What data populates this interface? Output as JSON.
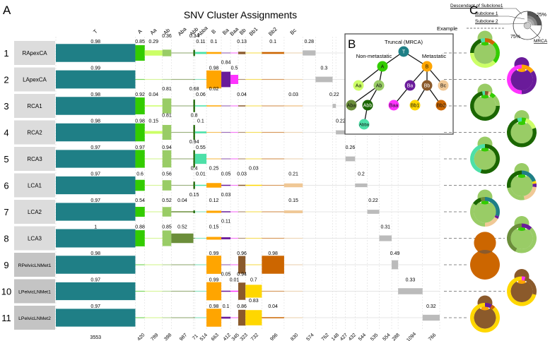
{
  "panels": {
    "a": "A",
    "b": "B",
    "c": "C"
  },
  "chart_data": {
    "type": "table",
    "title": "SNV Cluster Assignments",
    "clusters": [
      {
        "name": "T",
        "count": 3553,
        "color": "#1f7f86"
      },
      {
        "name": "A",
        "count": 420,
        "color": "#33cc00"
      },
      {
        "name": "Aa",
        "count": 789,
        "color": "#ccff66"
      },
      {
        "name": "Ab",
        "count": 398,
        "color": "#99cc66"
      },
      {
        "name": "Aba",
        "count": 987,
        "color": "#6b8e3a"
      },
      {
        "name": "Abb",
        "count": 71,
        "color": "#1a6600"
      },
      {
        "name": "Abba",
        "count": 514,
        "color": "#4de0a8"
      },
      {
        "name": "B",
        "count": 663,
        "color": "#ffa500"
      },
      {
        "name": "Ba",
        "count": 412,
        "color": "#6a1b9a"
      },
      {
        "name": "Baa",
        "count": 345,
        "color": "#ff33ff"
      },
      {
        "name": "Bb",
        "count": 323,
        "color": "#8b5a2b"
      },
      {
        "name": "Bb1",
        "count": 732,
        "color": "#ffd700"
      },
      {
        "name": "Bb2",
        "count": 996,
        "color": "#cc6600"
      },
      {
        "name": "Bc",
        "count": 830,
        "color": "#f0c896"
      }
    ],
    "private_clusters": {
      "color": "#bbbbbb",
      "counts": [
        574,
        762,
        148,
        427,
        432,
        544,
        535,
        554,
        288,
        1094,
        766
      ]
    },
    "samples": [
      {
        "id": "1",
        "name": "RApexCA",
        "values": {
          "T": 0.98,
          "A": 0.85,
          "Aa": 0.29,
          "Ab": 0.36,
          "Abb": 0.34,
          "Abba": 0.11,
          "B": 0.1,
          "Bb": 0.13,
          "Bb2": 0.1
        },
        "private": {
          "index": 0,
          "value": 0.28
        }
      },
      {
        "id": "2",
        "name": "LApexCA",
        "values": {
          "T": 0.99,
          "B": 0.98,
          "Ba": 0.84,
          "Baa": 0.5
        },
        "private": {
          "index": 1,
          "value": 0.3
        }
      },
      {
        "id": "3",
        "name": "RCA1",
        "values": {
          "T": 0.98,
          "A": 0.92,
          "Aa": 0.04,
          "Ab": 0.81,
          "Abb": 0.68,
          "Abba": 0.06,
          "B": 0.02,
          "Bb": 0.04,
          "Bc": 0.03
        },
        "private": {
          "index": 2,
          "value": 0.22
        }
      },
      {
        "id": "4",
        "name": "RCA2",
        "values": {
          "T": 0.98,
          "A": 0.98,
          "Aa": 0.15,
          "Ab": 0.81,
          "Abb": 0.8,
          "Abba": 0.1
        },
        "private": {
          "index": 3,
          "value": 0.22
        }
      },
      {
        "id": "5",
        "name": "RCA3",
        "values": {
          "T": 0.97,
          "A": 0.97,
          "Ab": 0.94,
          "Abb": 0.94,
          "Abba": 0.55
        },
        "private": {
          "index": 4,
          "value": 0.26
        }
      },
      {
        "id": "6",
        "name": "LCA1",
        "values": {
          "T": 0.97,
          "A": 0.6,
          "Ab": 0.56,
          "Abb": 0.4,
          "Abba": 0.01,
          "B": 0.25,
          "Ba": 0.05,
          "Bb": 0.03,
          "Bb1": 0.03,
          "Bc": 0.21
        },
        "private": {
          "index": 5,
          "value": 0.2
        }
      },
      {
        "id": "7",
        "name": "LCA2",
        "values": {
          "T": 0.97,
          "A": 0.54,
          "Ab": 0.52,
          "Aba": 0.04,
          "Abb": 0.15,
          "B": 0.12,
          "Ba": 0.03,
          "Bc": 0.15
        },
        "private": {
          "index": 6,
          "value": 0.22
        }
      },
      {
        "id": "8",
        "name": "LCA3",
        "values": {
          "T": 1,
          "A": 0.88,
          "Ab": 0.85,
          "Aba": 0.52,
          "B": 0.15,
          "Ba": 0.11
        },
        "private": {
          "index": 7,
          "value": 0.31
        }
      },
      {
        "id": "9",
        "name": "RPelvicLNMet1",
        "values": {
          "T": 0.98,
          "B": 0.99,
          "Bb": 0.96,
          "Bb2": 0.98
        },
        "private": {
          "index": 8,
          "value": 0.49
        }
      },
      {
        "id": "10",
        "name": "LPelvicLNMet1",
        "values": {
          "T": 0.97,
          "B": 0.99,
          "Ba": 0.05,
          "Baa": 0.01,
          "Bb": 0.94,
          "Bb1": 0.7
        },
        "private": {
          "index": 9,
          "value": 0.33
        }
      },
      {
        "id": "11",
        "name": "LPelvicLNMet2",
        "values": {
          "T": 0.97,
          "B": 0.98,
          "Ba": 0.1,
          "Bb": 0.86,
          "Bb1": 0.83,
          "Bb2": 0.04
        },
        "private": {
          "index": 10,
          "value": 0.32
        }
      }
    ]
  },
  "tree": {
    "title": "Truncal (MRCA)",
    "left_label": "Non-metastatic",
    "right_label": "Metastatic",
    "nodes": [
      "T",
      "A",
      "B",
      "Aa",
      "Ab",
      "Ba",
      "Bb",
      "Bc",
      "Aba",
      "Abb",
      "Baa",
      "Bb1",
      "Bb2",
      "Abba"
    ],
    "edges": [
      [
        "T",
        "A"
      ],
      [
        "T",
        "B"
      ],
      [
        "A",
        "Aa"
      ],
      [
        "A",
        "Ab"
      ],
      [
        "Ab",
        "Aba"
      ],
      [
        "Ab",
        "Abb"
      ],
      [
        "Abb",
        "Abba"
      ],
      [
        "B",
        "Ba"
      ],
      [
        "B",
        "Bb"
      ],
      [
        "B",
        "Bc"
      ],
      [
        "Ba",
        "Baa"
      ],
      [
        "Bb",
        "Bb1"
      ],
      [
        "Bb",
        "Bb2"
      ]
    ]
  },
  "legend": {
    "descendant": "Descendant of Subclone1",
    "subclone1": "Subclone 1",
    "subclone2": "Subclone 2",
    "example": "Example",
    "pct25": "25%",
    "pct75": "75%",
    "mrca": "MRCA"
  },
  "pies": [
    [
      [
        [
          "#33cc00",
          1
        ]
      ],
      [
        [
          "#99cc66",
          1
        ]
      ],
      [
        [
          "#cc6600",
          0.12
        ],
        [
          "#33cc00",
          0.25
        ],
        [
          "#ccff66",
          0.38
        ],
        [
          "#1a6600",
          0.2
        ],
        [
          "#4de0a8",
          0.05
        ]
      ]
    ],
    [
      [
        [
          "#ffa500",
          1
        ]
      ],
      [
        [
          "#6a1b9a",
          1
        ]
      ],
      [
        [
          "#ffa500",
          0.15
        ],
        [
          "#6a1b9a",
          0.35
        ],
        [
          "#ff33ff",
          0.5
        ]
      ]
    ],
    [
      [
        [
          "#33cc00",
          1
        ]
      ],
      [
        [
          "#99cc66",
          1
        ]
      ],
      [
        [
          "#8b5a2b",
          0.04
        ],
        [
          "#f0c896",
          0.03
        ],
        [
          "#33cc00",
          0.06
        ],
        [
          "#99cc66",
          0.12
        ],
        [
          "#1a6600",
          0.72
        ],
        [
          "#4de0a8",
          0.03
        ]
      ]
    ],
    [
      [
        [
          "#33cc00",
          1
        ]
      ],
      [
        [
          "#99cc66",
          1
        ]
      ],
      [
        [
          "#33cc00",
          0.05
        ],
        [
          "#ccff66",
          0.15
        ],
        [
          "#1a6600",
          0.75
        ],
        [
          "#4de0a8",
          0.05
        ]
      ]
    ],
    [
      [
        [
          "#33cc00",
          1
        ]
      ],
      [
        [
          "#99cc66",
          1
        ]
      ],
      [
        [
          "#1a6600",
          0.55
        ],
        [
          "#4de0a8",
          0.45
        ]
      ]
    ],
    [
      [
        [
          "#33cc00",
          1
        ]
      ],
      [
        [
          "#99cc66",
          1
        ]
      ],
      [
        [
          "#1f7f86",
          0.2
        ],
        [
          "#ffd700",
          0.03
        ],
        [
          "#6a1b9a",
          0.04
        ],
        [
          "#f0c896",
          0.2
        ],
        [
          "#99cc66",
          0.25
        ],
        [
          "#1a6600",
          0.28
        ]
      ]
    ],
    [
      [
        [
          "#33cc00",
          1
        ]
      ],
      [
        [
          "#99cc66",
          1
        ]
      ],
      [
        [
          "#1f7f86",
          0.3
        ],
        [
          "#6a1b9a",
          0.03
        ],
        [
          "#f0c896",
          0.17
        ],
        [
          "#99cc66",
          0.35
        ],
        [
          "#1a6600",
          0.1
        ],
        [
          "#6b8e3a",
          0.05
        ]
      ]
    ],
    [
      [
        [
          "#33cc00",
          1
        ]
      ],
      [
        [
          "#99cc66",
          1
        ]
      ],
      [
        [
          "#6a1b9a",
          0.12
        ],
        [
          "#99cc66",
          0.45
        ],
        [
          "#6b8e3a",
          0.43
        ]
      ]
    ],
    [
      [
        [
          "#ffa500",
          1
        ]
      ],
      [
        [
          "#8b5a2b",
          1
        ]
      ],
      [
        [
          "#cc6600",
          1
        ]
      ]
    ],
    [
      [
        [
          "#ffa500",
          1
        ]
      ],
      [
        [
          "#8b5a2b",
          1
        ]
      ],
      [
        [
          "#ff33ff",
          0.04
        ],
        [
          "#8b5a2b",
          0.25
        ],
        [
          "#ffd700",
          0.71
        ]
      ]
    ],
    [
      [
        [
          "#ffa500",
          1
        ]
      ],
      [
        [
          "#8b5a2b",
          1
        ]
      ],
      [
        [
          "#6a1b9a",
          0.08
        ],
        [
          "#cc6600",
          0.04
        ],
        [
          "#ffd700",
          0.88
        ]
      ]
    ]
  ]
}
